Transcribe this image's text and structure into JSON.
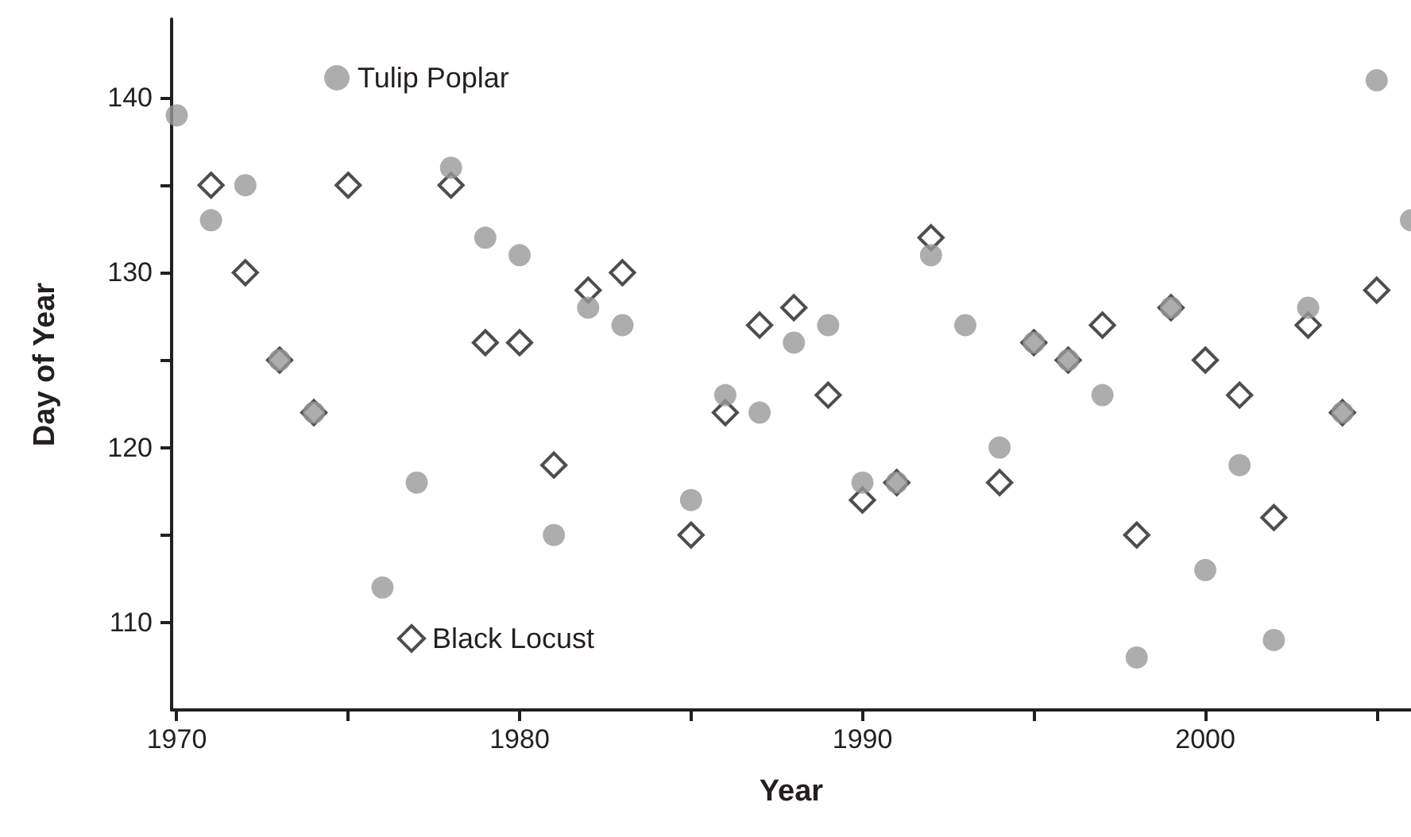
{
  "chart_data": {
    "type": "scatter",
    "xlabel": "Year",
    "ylabel": "Day of Year",
    "xlim": [
      1969.85,
      2006
    ],
    "ylim": [
      105,
      144.5
    ],
    "xticks": [
      1970,
      {
        "value": 1975,
        "label": null
      },
      1980,
      {
        "value": 1985,
        "label": null
      },
      1990,
      {
        "value": 1995,
        "label": null
      },
      2000,
      {
        "value": 2005,
        "label": null
      }
    ],
    "yticks": [
      110,
      {
        "value": 115,
        "label": null
      },
      120,
      {
        "value": 125,
        "label": null
      },
      130,
      {
        "value": 135,
        "label": null
      },
      140
    ],
    "grid": false,
    "legend": "left",
    "series": [
      {
        "name": "Tulip Poplar",
        "color": "#999999",
        "marker": "circle",
        "x": [
          1970,
          1971,
          1972,
          1973,
          1974,
          1976,
          1977,
          1978,
          1979,
          1980,
          1981,
          1982,
          1983,
          1985,
          1986,
          1987,
          1988,
          1989,
          1990,
          1991,
          1992,
          1993,
          1994,
          1995,
          1996,
          1997,
          1998,
          1999,
          2000,
          2001,
          2002,
          2003,
          2004,
          2005,
          2006
        ],
        "values": [
          139,
          133,
          135,
          125,
          122,
          112,
          118,
          136,
          132,
          131,
          115,
          128,
          127,
          117,
          123,
          122,
          126,
          127,
          118,
          118,
          131,
          127,
          120,
          126,
          125,
          123,
          108,
          128,
          113,
          119,
          109,
          128,
          122,
          141,
          133
        ]
      },
      {
        "name": "Black Locust",
        "color": "#231f20",
        "marker": "diamond",
        "x": [
          1971,
          1972,
          1973,
          1974,
          1975,
          1978,
          1979,
          1980,
          1981,
          1982,
          1983,
          1985,
          1986,
          1987,
          1988,
          1989,
          1990,
          1991,
          1992,
          1994,
          1995,
          1996,
          1997,
          1998,
          1999,
          2000,
          2001,
          2002,
          2003,
          2004,
          2005
        ],
        "values": [
          135,
          130,
          125,
          122,
          135,
          135,
          126,
          126,
          119,
          129,
          130,
          115,
          122,
          127,
          128,
          123,
          117,
          118,
          132,
          118,
          126,
          125,
          127,
          115,
          128,
          125,
          123,
          116,
          127,
          122,
          129
        ]
      }
    ]
  }
}
